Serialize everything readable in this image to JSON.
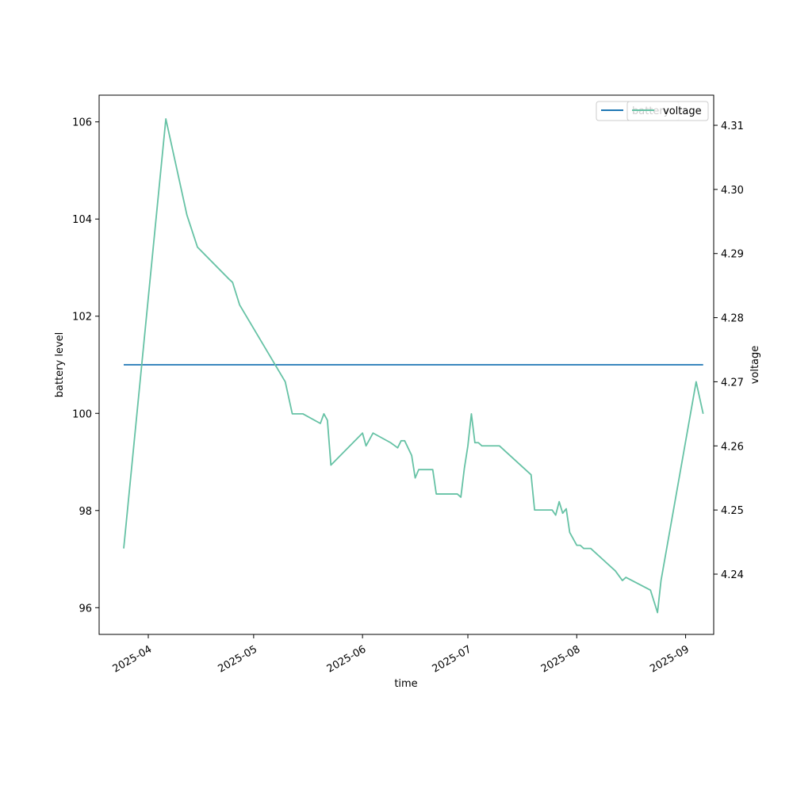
{
  "chart_data": {
    "type": "line",
    "title": "",
    "xlabel": "time",
    "ylabel": "battery level",
    "y2label": "voltage",
    "x_ticks": [
      "2025-04",
      "2025-05",
      "2025-06",
      "2025-07",
      "2025-08",
      "2025-09"
    ],
    "y_ticks": [
      96,
      98,
      100,
      102,
      104,
      106
    ],
    "y2_ticks": [
      4.24,
      4.25,
      4.26,
      4.27,
      4.28,
      4.29,
      4.3,
      4.31
    ],
    "ylim": [
      95.45,
      106.55
    ],
    "y2lim": [
      4.2306,
      4.3147
    ],
    "xlim": [
      "2025-03-18",
      "2025-09-09"
    ],
    "grid": false,
    "legend": {
      "placement": "top-right",
      "entries": [
        "battery",
        "voltage"
      ]
    },
    "series": [
      {
        "name": "battery",
        "axis": "left",
        "color": "#1f77b4",
        "x": [
          "2025-03-25",
          "2025-09-06"
        ],
        "y": [
          101,
          101
        ]
      },
      {
        "name": "voltage",
        "axis": "right",
        "color": "#66c2a5",
        "x": [
          "2025-03-25",
          "2025-04-06",
          "2025-04-12",
          "2025-04-15",
          "2025-04-24",
          "2025-04-25",
          "2025-04-27",
          "2025-05-10",
          "2025-05-12",
          "2025-05-15",
          "2025-05-20",
          "2025-05-21",
          "2025-05-22",
          "2025-05-23",
          "2025-06-01",
          "2025-06-02",
          "2025-06-04",
          "2025-06-09",
          "2025-06-11",
          "2025-06-12",
          "2025-06-13",
          "2025-06-15",
          "2025-06-16",
          "2025-06-17",
          "2025-06-21",
          "2025-06-22",
          "2025-06-28",
          "2025-06-29",
          "2025-06-30",
          "2025-07-01",
          "2025-07-02",
          "2025-07-03",
          "2025-07-04",
          "2025-07-05",
          "2025-07-10",
          "2025-07-19",
          "2025-07-20",
          "2025-07-25",
          "2025-07-26",
          "2025-07-27",
          "2025-07-28",
          "2025-07-29",
          "2025-07-30",
          "2025-08-01",
          "2025-08-02",
          "2025-08-03",
          "2025-08-04",
          "2025-08-05",
          "2025-08-12",
          "2025-08-14",
          "2025-08-15",
          "2025-08-22",
          "2025-08-24",
          "2025-08-25",
          "2025-09-04",
          "2025-09-06"
        ],
        "y": [
          4.244,
          4.311,
          4.296,
          4.291,
          4.286,
          4.2855,
          4.282,
          4.27,
          4.265,
          4.265,
          4.2635,
          4.265,
          4.264,
          4.257,
          4.262,
          4.26,
          4.262,
          4.2605,
          4.2597,
          4.2608,
          4.2608,
          4.2585,
          4.255,
          4.2563,
          4.2563,
          4.2525,
          4.2525,
          4.252,
          4.2565,
          4.26,
          4.265,
          4.2605,
          4.2605,
          4.26,
          4.26,
          4.2555,
          4.25,
          4.25,
          4.2492,
          4.2513,
          4.2495,
          4.2502,
          4.2465,
          4.2445,
          4.2445,
          4.244,
          4.244,
          4.244,
          4.2405,
          4.239,
          4.2395,
          4.2375,
          4.234,
          4.239,
          4.27,
          4.265
        ]
      }
    ]
  }
}
